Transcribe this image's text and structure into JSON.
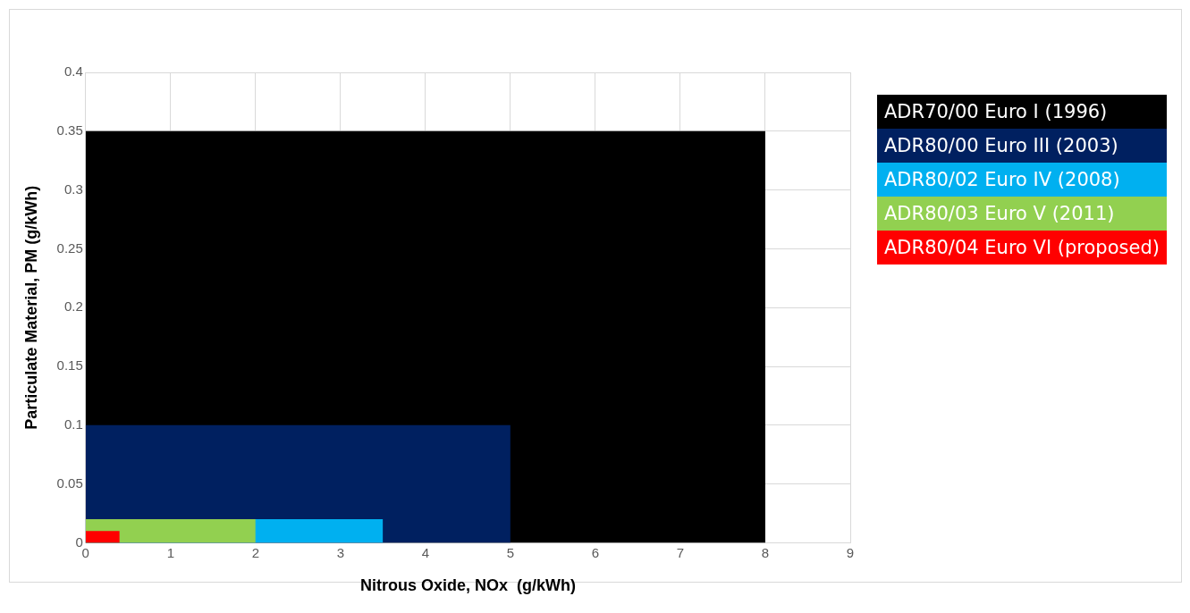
{
  "chart_data": {
    "type": "area",
    "xlabel": "Nitrous Oxide, NOx  (g/kWh)",
    "ylabel": "Particulate Material, PM (g/kWh)",
    "xlim": [
      0,
      9
    ],
    "xticks": [
      0,
      1,
      2,
      3,
      4,
      5,
      6,
      7,
      8,
      9
    ],
    "ylim": [
      0,
      0.4
    ],
    "yticks": [
      0,
      0.05,
      0.1,
      0.15,
      0.2,
      0.25,
      0.3,
      0.35,
      0.4
    ],
    "grid": true,
    "legend": "right",
    "marker": "none",
    "series": [
      {
        "name": "ADR70/00 Euro I (1996)",
        "color": "#000000",
        "x": [
          0,
          8
        ],
        "values": [
          0.35,
          0.35
        ]
      },
      {
        "name": "ADR80/00 Euro III (2003)",
        "color": "#002060",
        "x": [
          0,
          5
        ],
        "values": [
          0.1,
          0.1
        ]
      },
      {
        "name": "ADR80/02 Euro IV (2008)",
        "color": "#00b0f0",
        "x": [
          0,
          3.5
        ],
        "values": [
          0.02,
          0.02
        ]
      },
      {
        "name": "ADR80/03 Euro V (2011)",
        "color": "#92d050",
        "x": [
          0,
          2
        ],
        "values": [
          0.02,
          0.02
        ]
      },
      {
        "name": "ADR80/04 Euro VI (proposed)",
        "color": "#ff0000",
        "x": [
          0,
          0.4
        ],
        "values": [
          0.01,
          0.01
        ]
      }
    ]
  }
}
